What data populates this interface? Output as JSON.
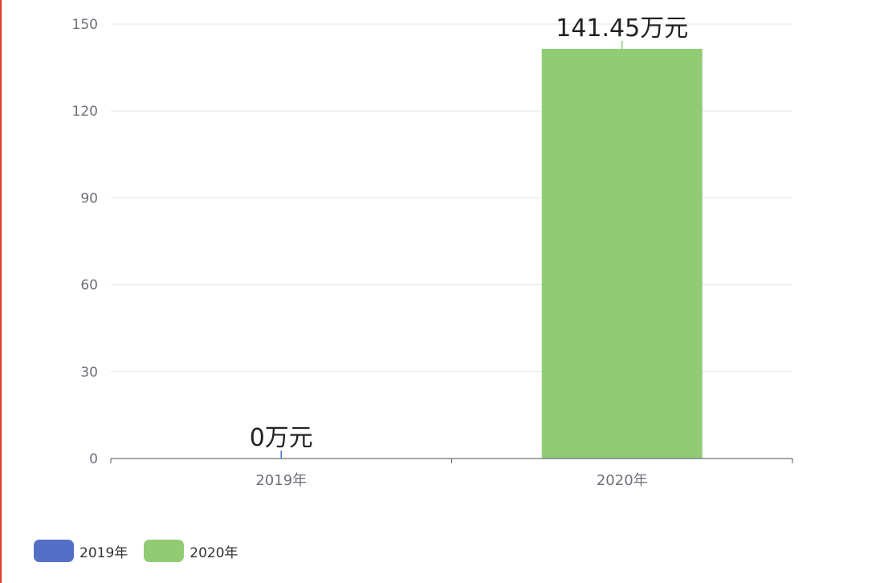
{
  "chart_data": {
    "type": "bar",
    "categories": [
      "2019年",
      "2020年"
    ],
    "values": [
      0,
      141.45
    ],
    "labels": [
      "0万元",
      "141.45万元"
    ],
    "colors": [
      "#5470c6",
      "#91cc75"
    ],
    "ylim": [
      0,
      150
    ],
    "yticks": [
      "0",
      "30",
      "60",
      "90",
      "120",
      "150"
    ],
    "grid": true,
    "legend_position": "bottom-left"
  },
  "legend": {
    "items": [
      {
        "label": "2019年",
        "color": "#5470c6"
      },
      {
        "label": "2020年",
        "color": "#91cc75"
      }
    ]
  }
}
